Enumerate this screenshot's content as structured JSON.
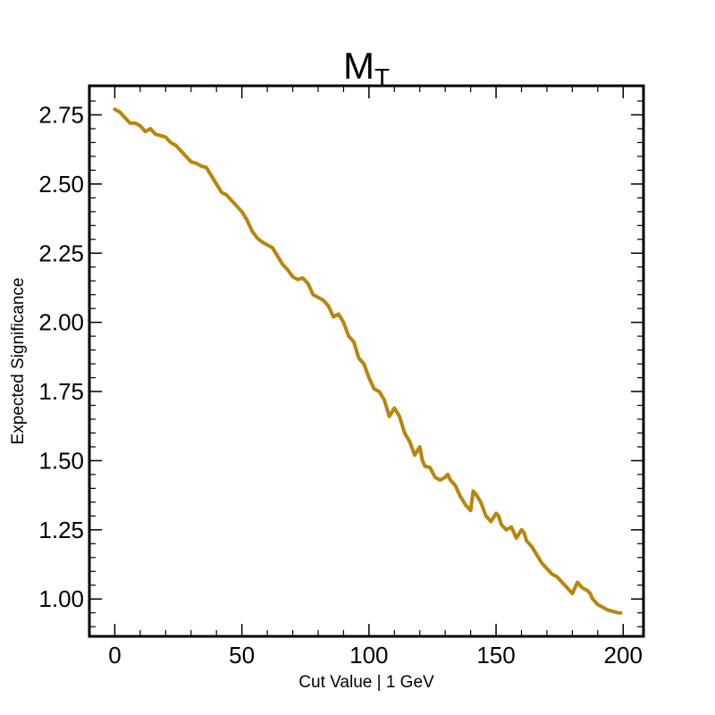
{
  "chart_data": {
    "type": "line",
    "title": "M",
    "title_subscript": "T",
    "xlabel": "Cut Value | 1 GeV",
    "ylabel": "Expected Significance",
    "xlim": [
      -10,
      208
    ],
    "ylim": [
      0.865,
      2.855
    ],
    "xticks": [
      0,
      50,
      100,
      150,
      200
    ],
    "xtick_labels": [
      "0",
      "50",
      "100",
      "150",
      "200"
    ],
    "yticks": [
      1.0,
      1.25,
      1.5,
      1.75,
      2.0,
      2.25,
      2.5,
      2.75
    ],
    "ytick_labels": [
      "1.00",
      "1.25",
      "1.50",
      "1.75",
      "2.00",
      "2.25",
      "2.50",
      "2.75"
    ],
    "grid": false,
    "line_color": "#b8860b",
    "series": [
      {
        "x": [
          0,
          2,
          4,
          6,
          8,
          10,
          12,
          14,
          16,
          18,
          20,
          22,
          24,
          26,
          28,
          30,
          32,
          34,
          36,
          38,
          40,
          42,
          44,
          46,
          48,
          50,
          52,
          54,
          56,
          58,
          60,
          62,
          64,
          66,
          68,
          70,
          72,
          74,
          76,
          78,
          80,
          82,
          84,
          86,
          88,
          90,
          92,
          94,
          95,
          96,
          98,
          100,
          102,
          104,
          106,
          108,
          110,
          112,
          114,
          116,
          118,
          120,
          121,
          122,
          124,
          126,
          128,
          130,
          131,
          132,
          134,
          136,
          138,
          140,
          141,
          142,
          144,
          146,
          148,
          150,
          151,
          152,
          154,
          156,
          158,
          160,
          161,
          162,
          164,
          166,
          168,
          169,
          170,
          172,
          174,
          176,
          178,
          180,
          182,
          184,
          186,
          187,
          188,
          190,
          192,
          194,
          196,
          198,
          199
        ],
        "y": [
          2.77,
          2.76,
          2.74,
          2.72,
          2.72,
          2.71,
          2.69,
          2.7,
          2.68,
          2.675,
          2.67,
          2.65,
          2.64,
          2.62,
          2.6,
          2.58,
          2.575,
          2.565,
          2.56,
          2.53,
          2.5,
          2.47,
          2.46,
          2.44,
          2.42,
          2.4,
          2.37,
          2.33,
          2.305,
          2.29,
          2.28,
          2.27,
          2.24,
          2.21,
          2.19,
          2.165,
          2.155,
          2.16,
          2.14,
          2.1,
          2.09,
          2.08,
          2.06,
          2.02,
          2.03,
          2.0,
          1.95,
          1.93,
          1.9,
          1.87,
          1.85,
          1.8,
          1.76,
          1.75,
          1.72,
          1.66,
          1.69,
          1.66,
          1.6,
          1.57,
          1.52,
          1.55,
          1.5,
          1.48,
          1.475,
          1.44,
          1.43,
          1.44,
          1.45,
          1.43,
          1.41,
          1.37,
          1.34,
          1.32,
          1.39,
          1.38,
          1.35,
          1.3,
          1.28,
          1.31,
          1.3,
          1.27,
          1.25,
          1.26,
          1.22,
          1.25,
          1.24,
          1.21,
          1.19,
          1.16,
          1.13,
          1.12,
          1.11,
          1.09,
          1.08,
          1.06,
          1.04,
          1.02,
          1.06,
          1.04,
          1.03,
          1.02,
          1.0,
          0.98,
          0.97,
          0.96,
          0.955,
          0.95,
          0.95
        ]
      }
    ]
  }
}
